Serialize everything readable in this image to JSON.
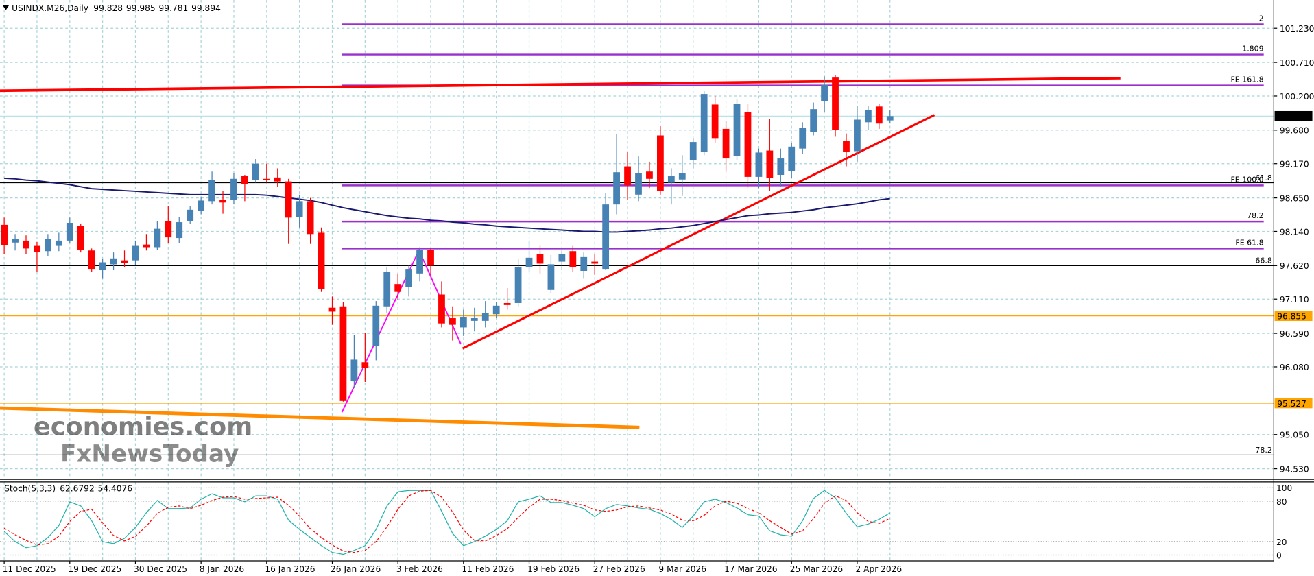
{
  "chart_data": {
    "type": "candlestick",
    "title": "USINDX.M26,Daily",
    "categories": [
      "11 Dec 2025",
      null,
      null,
      null,
      null,
      null,
      "19 Dec 2025",
      null,
      null,
      null,
      null,
      null,
      "30 Dec 2025",
      null,
      null,
      null,
      null,
      null,
      "8 Jan 2026",
      null,
      null,
      null,
      null,
      null,
      "16 Jan 2026",
      null,
      null,
      null,
      null,
      null,
      "26 Jan 2026",
      null,
      null,
      null,
      null,
      null,
      "3 Feb 2026",
      null,
      null,
      null,
      null,
      null,
      "11 Feb 2026",
      null,
      null,
      null,
      null,
      null,
      "19 Feb 2026",
      null,
      null,
      null,
      null,
      null,
      "27 Feb 2026",
      null,
      null,
      null,
      null,
      null,
      "9 Mar 2026",
      null,
      null,
      null,
      null,
      null,
      "17 Mar 2026",
      null,
      null,
      null,
      null,
      null,
      "25 Mar 2026",
      null,
      null,
      null,
      null,
      null,
      "2 Apr 2026",
      null,
      null,
      null
    ],
    "open": [
      98.24,
      97.97,
      98.0,
      97.92,
      97.84,
      97.92,
      98.0,
      98.22,
      97.85,
      97.55,
      97.64,
      97.7,
      97.7,
      97.94,
      97.9,
      98.3,
      98.04,
      98.3,
      98.45,
      98.6,
      98.62,
      98.62,
      98.98,
      98.92,
      98.94,
      98.96,
      98.9,
      98.36,
      98.6,
      98.12,
      96.98,
      97.0,
      95.86,
      96.15,
      96.4,
      97.0,
      97.34,
      97.3,
      97.5,
      97.86,
      97.18,
      96.82,
      96.68,
      96.78,
      96.78,
      96.88,
      97.05,
      97.05,
      97.6,
      97.8,
      97.25,
      97.68,
      97.84,
      97.54,
      97.68,
      97.56,
      98.55,
      99.13,
      98.7,
      99.05,
      99.6,
      98.88,
      98.93,
      99.22,
      99.35,
      100.07,
      99.7,
      99.29,
      99.95,
      98.97,
      99.37,
      99.0,
      99.06,
      99.4,
      99.65,
      100.12,
      100.48,
      99.52,
      99.36,
      99.8,
      100.04,
      99.828
    ],
    "high": [
      98.35,
      98.1,
      98.08,
      97.98,
      98.1,
      98.12,
      98.35,
      98.26,
      97.88,
      97.72,
      97.82,
      97.85,
      98.0,
      98.1,
      98.3,
      98.52,
      98.36,
      98.52,
      98.67,
      99.05,
      98.75,
      99.03,
      99.0,
      99.24,
      99.17,
      99.1,
      98.94,
      98.7,
      98.65,
      98.2,
      97.15,
      97.07,
      96.56,
      96.6,
      97.08,
      97.6,
      97.5,
      97.62,
      97.9,
      97.88,
      97.38,
      97.0,
      96.95,
      96.98,
      97.08,
      97.06,
      97.28,
      97.72,
      98.0,
      97.92,
      97.78,
      97.9,
      97.92,
      97.82,
      97.8,
      98.72,
      99.62,
      99.35,
      99.28,
      99.2,
      99.74,
      99.1,
      99.3,
      99.56,
      100.28,
      100.2,
      99.82,
      100.15,
      100.08,
      99.4,
      99.85,
      99.4,
      99.48,
      99.8,
      100.1,
      100.5,
      100.52,
      99.63,
      100.05,
      100.05,
      100.08,
      99.985
    ],
    "low": [
      97.8,
      97.85,
      97.8,
      97.52,
      97.76,
      97.84,
      97.96,
      97.82,
      97.52,
      97.42,
      97.55,
      97.6,
      97.63,
      97.85,
      97.86,
      97.96,
      97.96,
      98.25,
      98.4,
      98.55,
      98.41,
      98.55,
      98.6,
      98.88,
      98.88,
      98.82,
      97.95,
      98.2,
      97.95,
      97.22,
      96.72,
      95.55,
      95.76,
      95.85,
      96.18,
      96.9,
      97.1,
      97.15,
      97.38,
      97.48,
      96.68,
      96.48,
      96.55,
      96.62,
      96.68,
      96.82,
      96.95,
      97.0,
      97.52,
      97.5,
      97.2,
      97.55,
      97.52,
      97.42,
      97.48,
      97.55,
      98.4,
      98.62,
      98.6,
      98.8,
      98.7,
      98.55,
      98.68,
      99.1,
      99.3,
      99.48,
      99.05,
      99.22,
      98.8,
      98.8,
      98.75,
      98.82,
      98.95,
      99.32,
      99.6,
      99.95,
      99.58,
      99.13,
      99.2,
      99.68,
      99.7,
      99.781
    ],
    "close": [
      97.93,
      98.02,
      97.88,
      97.83,
      98.02,
      98.0,
      98.27,
      97.86,
      97.56,
      97.67,
      97.73,
      97.66,
      97.92,
      97.9,
      98.18,
      98.05,
      98.28,
      98.47,
      98.61,
      98.92,
      98.58,
      98.94,
      98.86,
      99.17,
      98.92,
      98.9,
      98.35,
      98.6,
      98.1,
      97.26,
      96.92,
      95.56,
      96.19,
      96.06,
      97.01,
      97.52,
      97.22,
      97.56,
      97.86,
      97.62,
      96.74,
      96.72,
      96.84,
      96.82,
      96.9,
      97.01,
      97.02,
      97.6,
      97.74,
      97.65,
      97.64,
      97.8,
      97.6,
      97.75,
      97.65,
      98.55,
      99.04,
      98.84,
      99.03,
      98.94,
      98.75,
      98.98,
      99.03,
      99.5,
      100.23,
      99.56,
      99.25,
      100.08,
      98.97,
      99.34,
      98.95,
      99.25,
      99.43,
      99.72,
      100.0,
      100.37,
      99.68,
      99.35,
      99.84,
      99.99,
      99.78,
      99.894
    ],
    "up_color": "#4682b4",
    "down_color": "#ff0000",
    "series": [
      {
        "color": "#191970",
        "values": [
          98.95,
          98.94,
          98.92,
          98.91,
          98.89,
          98.87,
          98.85,
          98.82,
          98.79,
          98.78,
          98.77,
          98.76,
          98.75,
          98.74,
          98.73,
          98.72,
          98.71,
          98.7,
          98.7,
          98.7,
          98.7,
          98.7,
          98.7,
          98.7,
          98.69,
          98.67,
          98.65,
          98.63,
          98.61,
          98.58,
          98.54,
          98.5,
          98.47,
          98.44,
          98.41,
          98.38,
          98.36,
          98.34,
          98.33,
          98.31,
          98.3,
          98.28,
          98.27,
          98.25,
          98.24,
          98.22,
          98.21,
          98.2,
          98.19,
          98.18,
          98.17,
          98.16,
          98.15,
          98.14,
          98.14,
          98.13,
          98.13,
          98.14,
          98.15,
          98.16,
          98.18,
          98.19,
          98.21,
          98.23,
          98.26,
          98.29,
          98.32,
          98.35,
          98.38,
          98.39,
          98.41,
          98.42,
          98.43,
          98.45,
          98.47,
          98.5,
          98.52,
          98.54,
          98.56,
          98.59,
          98.62,
          98.64
        ]
      }
    ],
    "ylim": [
      94.38,
      101.66
    ],
    "yticks": [
      {
        "value": 101.23,
        "label": "101.230"
      },
      {
        "value": 100.71,
        "label": "100.710"
      },
      {
        "value": 100.2,
        "label": "100.200"
      },
      {
        "value": 99.68,
        "label": "99.680"
      },
      {
        "value": 99.17,
        "label": "99.170"
      },
      {
        "value": 98.65,
        "label": "98.650"
      },
      {
        "value": 98.14,
        "label": "98.140"
      },
      {
        "value": 97.62,
        "label": "97.620"
      },
      {
        "value": 97.11,
        "label": "97.110"
      },
      {
        "value": 96.59,
        "label": "96.590"
      },
      {
        "value": 96.08,
        "label": "96.080"
      },
      {
        "value": 95.05,
        "label": "95.050"
      },
      {
        "value": 94.53,
        "label": "94.530"
      }
    ],
    "grid": true,
    "fibo_color": "#9932cc",
    "fibo_levels": [
      {
        "label": "2",
        "value": 101.29
      },
      {
        "label": "1.809",
        "value": 100.83
      },
      {
        "label": "FE 161.8",
        "value": 100.36
      },
      {
        "label": "FE 100.0",
        "value": 98.84
      },
      {
        "label": "78.2",
        "value": 98.29
      },
      {
        "label": "FE 61.8",
        "value": 97.88
      }
    ],
    "levels_color": "#000000",
    "levels": [
      {
        "label": "61.8",
        "value": 98.88
      },
      {
        "label": "66.8",
        "value": 97.62
      },
      {
        "label": "78.2",
        "value": 94.74
      }
    ],
    "price_lines": [
      {
        "value": 96.855,
        "color": "#ffa500"
      },
      {
        "value": 95.527,
        "color": "#ffa500"
      }
    ],
    "watermark": [
      "economies.com",
      "FxNewsToday"
    ],
    "indicator": {
      "type": "line",
      "title": "Stoch(5,3,3)",
      "ylim": [
        -8.6,
        108.6
      ],
      "yticks": [
        100,
        80,
        20,
        0
      ],
      "series": [
        {
          "color": "#20b2aa",
          "values": [
            35,
            20,
            11,
            14,
            26,
            44,
            79,
            73,
            51,
            20,
            17,
            25,
            41,
            63,
            81,
            69,
            69,
            70,
            83,
            91,
            85,
            85,
            79,
            88,
            88,
            83,
            52,
            38,
            26,
            14,
            4,
            1,
            7,
            14,
            38,
            73,
            94,
            96,
            96,
            96,
            65,
            32,
            14,
            20,
            28,
            38,
            51,
            79,
            83,
            88,
            78,
            78,
            74,
            69,
            57,
            69,
            75,
            73,
            70,
            68,
            62,
            53,
            41,
            58,
            79,
            83,
            78,
            70,
            60,
            58,
            36,
            30,
            28,
            51,
            84,
            96,
            85,
            62,
            42,
            46,
            53,
            62.6792
          ]
        },
        {
          "color": "#ff0000",
          "dash": true,
          "values": [
            40,
            30,
            22,
            15,
            17,
            28,
            50,
            65,
            68,
            48,
            29,
            21,
            28,
            43,
            62,
            71,
            73,
            69,
            74,
            81,
            86,
            87,
            83,
            84,
            85,
            86,
            74,
            58,
            39,
            26,
            15,
            6,
            4,
            7,
            20,
            42,
            68,
            88,
            95,
            96,
            86,
            64,
            37,
            22,
            21,
            29,
            39,
            56,
            71,
            83,
            83,
            81,
            77,
            74,
            67,
            65,
            67,
            72,
            73,
            70,
            67,
            61,
            52,
            51,
            59,
            73,
            80,
            77,
            69,
            63,
            51,
            41,
            31,
            36,
            54,
            77,
            88,
            81,
            63,
            50,
            47,
            54.4076
          ]
        }
      ]
    }
  }
}
